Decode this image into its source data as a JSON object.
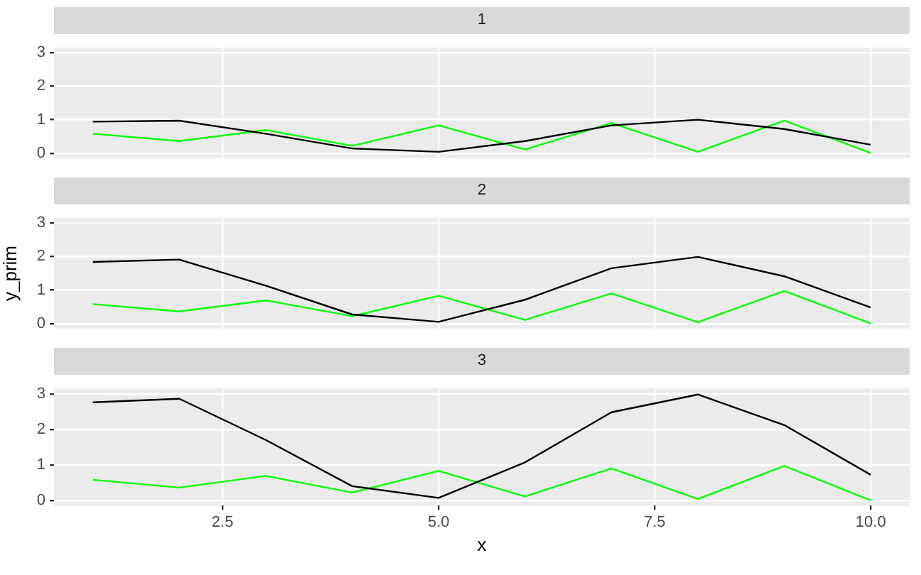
{
  "chart_data": [
    {
      "type": "line",
      "title": "1",
      "x": [
        1,
        2,
        3,
        4,
        5,
        6,
        7,
        8,
        9,
        10
      ],
      "series": [
        {
          "color": "#000000",
          "values": [
            0.94,
            0.97,
            0.58,
            0.14,
            0.04,
            0.36,
            0.83,
            1.0,
            0.72,
            0.25
          ]
        },
        {
          "color": "#00ff00",
          "values": [
            0.58,
            0.36,
            0.69,
            0.22,
            0.83,
            0.11,
            0.9,
            0.04,
            0.97,
            0.0
          ]
        }
      ],
      "xlim": [
        0.55,
        10.45
      ],
      "xticks": [
        2.5,
        5.0,
        7.5,
        10.0
      ],
      "ylim": [
        -0.15,
        3.15
      ],
      "yticks": [
        0,
        1,
        2,
        3
      ],
      "grid": true,
      "legend": false,
      "tick_labels": "y"
    },
    {
      "type": "line",
      "title": "2",
      "ylabel": "y_prim",
      "x": [
        1,
        2,
        3,
        4,
        5,
        6,
        7,
        8,
        9,
        10
      ],
      "series": [
        {
          "color": "#000000",
          "values": [
            1.84,
            1.91,
            1.13,
            0.27,
            0.05,
            0.71,
            1.65,
            1.99,
            1.41,
            0.48
          ]
        },
        {
          "color": "#00ff00",
          "values": [
            0.58,
            0.36,
            0.69,
            0.22,
            0.83,
            0.11,
            0.9,
            0.04,
            0.97,
            0.0
          ]
        }
      ],
      "xlim": [
        0.55,
        10.45
      ],
      "xticks": [
        2.5,
        5.0,
        7.5,
        10.0
      ],
      "ylim": [
        -0.15,
        3.15
      ],
      "yticks": [
        0,
        1,
        2,
        3
      ],
      "grid": true,
      "legend": false,
      "tick_labels": "y"
    },
    {
      "type": "line",
      "title": "3",
      "xlabel": "x",
      "x": [
        1,
        2,
        3,
        4,
        5,
        6,
        7,
        8,
        9,
        10
      ],
      "series": [
        {
          "color": "#000000",
          "values": [
            2.76,
            2.86,
            1.7,
            0.4,
            0.07,
            1.07,
            2.48,
            2.98,
            2.12,
            0.72
          ]
        },
        {
          "color": "#00ff00",
          "values": [
            0.58,
            0.36,
            0.69,
            0.22,
            0.83,
            0.11,
            0.9,
            0.04,
            0.97,
            0.0
          ]
        }
      ],
      "xlim": [
        0.55,
        10.45
      ],
      "xticks": [
        {
          "value": 2.5,
          "label": "2.5"
        },
        {
          "value": 5.0,
          "label": "5.0"
        },
        {
          "value": 7.5,
          "label": "7.5"
        },
        {
          "value": 10.0,
          "label": "10.0"
        }
      ],
      "ylim": [
        -0.15,
        3.15
      ],
      "yticks": [
        0,
        1,
        2,
        3
      ],
      "grid": true,
      "legend": false
    }
  ]
}
